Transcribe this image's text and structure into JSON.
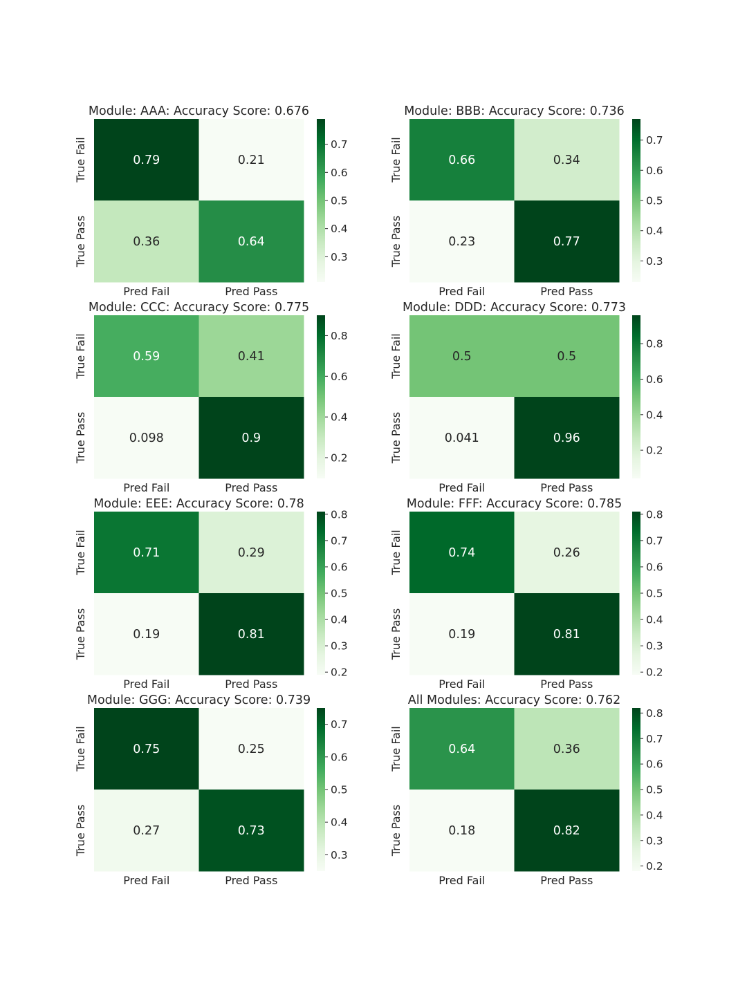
{
  "chart_data": [
    {
      "type": "heatmap",
      "title": "Module: AAA: Accuracy Score: 0.676",
      "x_labels": [
        "Pred Fail",
        "Pred Pass"
      ],
      "y_labels": [
        "True Fail",
        "True Pass"
      ],
      "values": [
        [
          0.79,
          0.21
        ],
        [
          0.36,
          0.64
        ]
      ],
      "cell_labels": [
        [
          "0.79",
          "0.21"
        ],
        [
          "0.36",
          "0.64"
        ]
      ],
      "colorbar": {
        "ticks": [
          "0.3",
          "0.4",
          "0.5",
          "0.6",
          "0.7"
        ],
        "vmin": 0.21,
        "vmax": 0.79
      },
      "colormap": "Greens"
    },
    {
      "type": "heatmap",
      "title": "Module: BBB: Accuracy Score: 0.736",
      "x_labels": [
        "Pred Fail",
        "Pred Pass"
      ],
      "y_labels": [
        "True Fail",
        "True Pass"
      ],
      "values": [
        [
          0.66,
          0.34
        ],
        [
          0.23,
          0.77
        ]
      ],
      "cell_labels": [
        [
          "0.66",
          "0.34"
        ],
        [
          "0.23",
          "0.77"
        ]
      ],
      "colorbar": {
        "ticks": [
          "0.3",
          "0.4",
          "0.5",
          "0.6",
          "0.7"
        ],
        "vmin": 0.23,
        "vmax": 0.77
      },
      "colormap": "Greens"
    },
    {
      "type": "heatmap",
      "title": "Module: CCC: Accuracy Score: 0.775",
      "x_labels": [
        "Pred Fail",
        "Pred Pass"
      ],
      "y_labels": [
        "True Fail",
        "True Pass"
      ],
      "values": [
        [
          0.59,
          0.41
        ],
        [
          0.098,
          0.9
        ]
      ],
      "cell_labels": [
        [
          "0.59",
          "0.41"
        ],
        [
          "0.098",
          "0.9"
        ]
      ],
      "colorbar": {
        "ticks": [
          "0.2",
          "0.4",
          "0.6",
          "0.8"
        ],
        "vmin": 0.098,
        "vmax": 0.9
      },
      "colormap": "Greens"
    },
    {
      "type": "heatmap",
      "title": "Module: DDD: Accuracy Score: 0.773",
      "x_labels": [
        "Pred Fail",
        "Pred Pass"
      ],
      "y_labels": [
        "True Fail",
        "True Pass"
      ],
      "values": [
        [
          0.5,
          0.5
        ],
        [
          0.041,
          0.96
        ]
      ],
      "cell_labels": [
        [
          "0.5",
          "0.5"
        ],
        [
          "0.041",
          "0.96"
        ]
      ],
      "colorbar": {
        "ticks": [
          "0.2",
          "0.4",
          "0.6",
          "0.8"
        ],
        "vmin": 0.041,
        "vmax": 0.96
      },
      "colormap": "Greens"
    },
    {
      "type": "heatmap",
      "title": "Module: EEE: Accuracy Score: 0.78",
      "x_labels": [
        "Pred Fail",
        "Pred Pass"
      ],
      "y_labels": [
        "True Fail",
        "True Pass"
      ],
      "values": [
        [
          0.71,
          0.29
        ],
        [
          0.19,
          0.81
        ]
      ],
      "cell_labels": [
        [
          "0.71",
          "0.29"
        ],
        [
          "0.19",
          "0.81"
        ]
      ],
      "colorbar": {
        "ticks": [
          "0.2",
          "0.3",
          "0.4",
          "0.5",
          "0.6",
          "0.7",
          "0.8"
        ],
        "vmin": 0.19,
        "vmax": 0.81
      },
      "colormap": "Greens"
    },
    {
      "type": "heatmap",
      "title": "Module: FFF: Accuracy Score: 0.785",
      "x_labels": [
        "Pred Fail",
        "Pred Pass"
      ],
      "y_labels": [
        "True Fail",
        "True Pass"
      ],
      "values": [
        [
          0.74,
          0.26
        ],
        [
          0.19,
          0.81
        ]
      ],
      "cell_labels": [
        [
          "0.74",
          "0.26"
        ],
        [
          "0.19",
          "0.81"
        ]
      ],
      "colorbar": {
        "ticks": [
          "0.2",
          "0.3",
          "0.4",
          "0.5",
          "0.6",
          "0.7",
          "0.8"
        ],
        "vmin": 0.19,
        "vmax": 0.81
      },
      "colormap": "Greens"
    },
    {
      "type": "heatmap",
      "title": "Module: GGG: Accuracy Score: 0.739",
      "x_labels": [
        "Pred Fail",
        "Pred Pass"
      ],
      "y_labels": [
        "True Fail",
        "True Pass"
      ],
      "values": [
        [
          0.75,
          0.25
        ],
        [
          0.27,
          0.73
        ]
      ],
      "cell_labels": [
        [
          "0.75",
          "0.25"
        ],
        [
          "0.27",
          "0.73"
        ]
      ],
      "colorbar": {
        "ticks": [
          "0.3",
          "0.4",
          "0.5",
          "0.6",
          "0.7"
        ],
        "vmin": 0.25,
        "vmax": 0.75
      },
      "colormap": "Greens"
    },
    {
      "type": "heatmap",
      "title": "All Modules: Accuracy Score: 0.762",
      "x_labels": [
        "Pred Fail",
        "Pred Pass"
      ],
      "y_labels": [
        "True Fail",
        "True Pass"
      ],
      "values": [
        [
          0.64,
          0.36
        ],
        [
          0.18,
          0.82
        ]
      ],
      "cell_labels": [
        [
          "0.64",
          "0.36"
        ],
        [
          "0.18",
          "0.82"
        ]
      ],
      "colorbar": {
        "ticks": [
          "0.2",
          "0.3",
          "0.4",
          "0.5",
          "0.6",
          "0.7",
          "0.8"
        ],
        "vmin": 0.18,
        "vmax": 0.82
      },
      "colormap": "Greens"
    }
  ]
}
